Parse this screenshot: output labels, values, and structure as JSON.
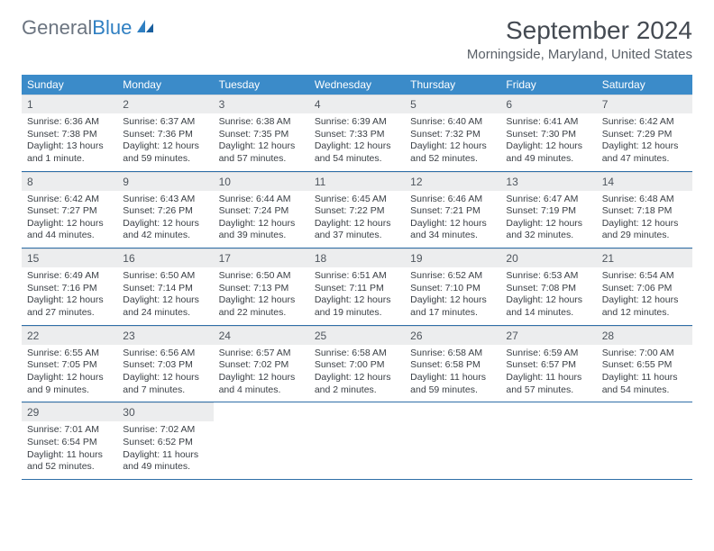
{
  "logo": {
    "part1": "General",
    "part2": "Blue"
  },
  "title": "September 2024",
  "location": "Morningside, Maryland, United States",
  "header_bg": "#3b8bc9",
  "daynum_bg": "#ecedee",
  "week_border": "#2f6fa8",
  "dayHeaders": [
    "Sunday",
    "Monday",
    "Tuesday",
    "Wednesday",
    "Thursday",
    "Friday",
    "Saturday"
  ],
  "weeks": [
    [
      {
        "n": "1",
        "sr": "Sunrise: 6:36 AM",
        "ss": "Sunset: 7:38 PM",
        "d1": "Daylight: 13 hours",
        "d2": "and 1 minute."
      },
      {
        "n": "2",
        "sr": "Sunrise: 6:37 AM",
        "ss": "Sunset: 7:36 PM",
        "d1": "Daylight: 12 hours",
        "d2": "and 59 minutes."
      },
      {
        "n": "3",
        "sr": "Sunrise: 6:38 AM",
        "ss": "Sunset: 7:35 PM",
        "d1": "Daylight: 12 hours",
        "d2": "and 57 minutes."
      },
      {
        "n": "4",
        "sr": "Sunrise: 6:39 AM",
        "ss": "Sunset: 7:33 PM",
        "d1": "Daylight: 12 hours",
        "d2": "and 54 minutes."
      },
      {
        "n": "5",
        "sr": "Sunrise: 6:40 AM",
        "ss": "Sunset: 7:32 PM",
        "d1": "Daylight: 12 hours",
        "d2": "and 52 minutes."
      },
      {
        "n": "6",
        "sr": "Sunrise: 6:41 AM",
        "ss": "Sunset: 7:30 PM",
        "d1": "Daylight: 12 hours",
        "d2": "and 49 minutes."
      },
      {
        "n": "7",
        "sr": "Sunrise: 6:42 AM",
        "ss": "Sunset: 7:29 PM",
        "d1": "Daylight: 12 hours",
        "d2": "and 47 minutes."
      }
    ],
    [
      {
        "n": "8",
        "sr": "Sunrise: 6:42 AM",
        "ss": "Sunset: 7:27 PM",
        "d1": "Daylight: 12 hours",
        "d2": "and 44 minutes."
      },
      {
        "n": "9",
        "sr": "Sunrise: 6:43 AM",
        "ss": "Sunset: 7:26 PM",
        "d1": "Daylight: 12 hours",
        "d2": "and 42 minutes."
      },
      {
        "n": "10",
        "sr": "Sunrise: 6:44 AM",
        "ss": "Sunset: 7:24 PM",
        "d1": "Daylight: 12 hours",
        "d2": "and 39 minutes."
      },
      {
        "n": "11",
        "sr": "Sunrise: 6:45 AM",
        "ss": "Sunset: 7:22 PM",
        "d1": "Daylight: 12 hours",
        "d2": "and 37 minutes."
      },
      {
        "n": "12",
        "sr": "Sunrise: 6:46 AM",
        "ss": "Sunset: 7:21 PM",
        "d1": "Daylight: 12 hours",
        "d2": "and 34 minutes."
      },
      {
        "n": "13",
        "sr": "Sunrise: 6:47 AM",
        "ss": "Sunset: 7:19 PM",
        "d1": "Daylight: 12 hours",
        "d2": "and 32 minutes."
      },
      {
        "n": "14",
        "sr": "Sunrise: 6:48 AM",
        "ss": "Sunset: 7:18 PM",
        "d1": "Daylight: 12 hours",
        "d2": "and 29 minutes."
      }
    ],
    [
      {
        "n": "15",
        "sr": "Sunrise: 6:49 AM",
        "ss": "Sunset: 7:16 PM",
        "d1": "Daylight: 12 hours",
        "d2": "and 27 minutes."
      },
      {
        "n": "16",
        "sr": "Sunrise: 6:50 AM",
        "ss": "Sunset: 7:14 PM",
        "d1": "Daylight: 12 hours",
        "d2": "and 24 minutes."
      },
      {
        "n": "17",
        "sr": "Sunrise: 6:50 AM",
        "ss": "Sunset: 7:13 PM",
        "d1": "Daylight: 12 hours",
        "d2": "and 22 minutes."
      },
      {
        "n": "18",
        "sr": "Sunrise: 6:51 AM",
        "ss": "Sunset: 7:11 PM",
        "d1": "Daylight: 12 hours",
        "d2": "and 19 minutes."
      },
      {
        "n": "19",
        "sr": "Sunrise: 6:52 AM",
        "ss": "Sunset: 7:10 PM",
        "d1": "Daylight: 12 hours",
        "d2": "and 17 minutes."
      },
      {
        "n": "20",
        "sr": "Sunrise: 6:53 AM",
        "ss": "Sunset: 7:08 PM",
        "d1": "Daylight: 12 hours",
        "d2": "and 14 minutes."
      },
      {
        "n": "21",
        "sr": "Sunrise: 6:54 AM",
        "ss": "Sunset: 7:06 PM",
        "d1": "Daylight: 12 hours",
        "d2": "and 12 minutes."
      }
    ],
    [
      {
        "n": "22",
        "sr": "Sunrise: 6:55 AM",
        "ss": "Sunset: 7:05 PM",
        "d1": "Daylight: 12 hours",
        "d2": "and 9 minutes."
      },
      {
        "n": "23",
        "sr": "Sunrise: 6:56 AM",
        "ss": "Sunset: 7:03 PM",
        "d1": "Daylight: 12 hours",
        "d2": "and 7 minutes."
      },
      {
        "n": "24",
        "sr": "Sunrise: 6:57 AM",
        "ss": "Sunset: 7:02 PM",
        "d1": "Daylight: 12 hours",
        "d2": "and 4 minutes."
      },
      {
        "n": "25",
        "sr": "Sunrise: 6:58 AM",
        "ss": "Sunset: 7:00 PM",
        "d1": "Daylight: 12 hours",
        "d2": "and 2 minutes."
      },
      {
        "n": "26",
        "sr": "Sunrise: 6:58 AM",
        "ss": "Sunset: 6:58 PM",
        "d1": "Daylight: 11 hours",
        "d2": "and 59 minutes."
      },
      {
        "n": "27",
        "sr": "Sunrise: 6:59 AM",
        "ss": "Sunset: 6:57 PM",
        "d1": "Daylight: 11 hours",
        "d2": "and 57 minutes."
      },
      {
        "n": "28",
        "sr": "Sunrise: 7:00 AM",
        "ss": "Sunset: 6:55 PM",
        "d1": "Daylight: 11 hours",
        "d2": "and 54 minutes."
      }
    ],
    [
      {
        "n": "29",
        "sr": "Sunrise: 7:01 AM",
        "ss": "Sunset: 6:54 PM",
        "d1": "Daylight: 11 hours",
        "d2": "and 52 minutes."
      },
      {
        "n": "30",
        "sr": "Sunrise: 7:02 AM",
        "ss": "Sunset: 6:52 PM",
        "d1": "Daylight: 11 hours",
        "d2": "and 49 minutes."
      },
      {
        "empty": true
      },
      {
        "empty": true
      },
      {
        "empty": true
      },
      {
        "empty": true
      },
      {
        "empty": true
      }
    ]
  ]
}
